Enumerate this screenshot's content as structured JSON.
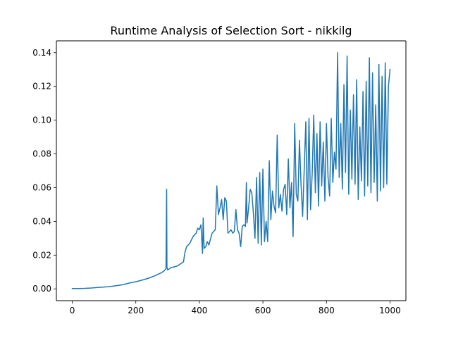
{
  "chart_data": {
    "type": "line",
    "title": "Runtime Analysis of Selection Sort - nikkilg",
    "xlabel": "",
    "ylabel": "",
    "xlim": [
      -50,
      1050
    ],
    "ylim": [
      -0.007,
      0.147
    ],
    "xticks": [
      0,
      200,
      400,
      600,
      800,
      1000
    ],
    "xtick_labels": [
      "0",
      "200",
      "400",
      "600",
      "800",
      "1000"
    ],
    "yticks": [
      0.0,
      0.02,
      0.04,
      0.06,
      0.08,
      0.1,
      0.12,
      0.14
    ],
    "ytick_labels": [
      "0.00",
      "0.02",
      "0.04",
      "0.06",
      "0.08",
      "0.10",
      "0.12",
      "0.14"
    ],
    "grid": false,
    "legend": "none",
    "series": [
      {
        "color": "#1f77b4",
        "x": [
          0,
          20,
          40,
          60,
          80,
          100,
          120,
          140,
          160,
          180,
          200,
          220,
          240,
          260,
          280,
          290,
          295,
          297,
          298,
          300,
          310,
          330,
          350,
          355,
          360,
          370,
          380,
          390,
          395,
          400,
          405,
          410,
          412,
          415,
          420,
          425,
          430,
          440,
          450,
          455,
          460,
          465,
          470,
          475,
          480,
          485,
          490,
          500,
          505,
          510,
          515,
          520,
          525,
          530,
          535,
          540,
          545,
          548,
          550,
          555,
          560,
          565,
          570,
          575,
          580,
          585,
          590,
          595,
          600,
          605,
          610,
          615,
          620,
          625,
          630,
          635,
          640,
          645,
          650,
          655,
          660,
          665,
          670,
          675,
          680,
          685,
          690,
          695,
          700,
          705,
          710,
          715,
          720,
          725,
          730,
          735,
          740,
          745,
          750,
          755,
          760,
          765,
          770,
          775,
          780,
          785,
          790,
          795,
          800,
          805,
          810,
          815,
          820,
          825,
          830,
          835,
          840,
          845,
          850,
          855,
          860,
          865,
          870,
          875,
          880,
          885,
          890,
          895,
          900,
          905,
          910,
          915,
          920,
          925,
          930,
          935,
          940,
          945,
          950,
          955,
          960,
          965,
          970,
          975,
          980,
          985,
          990,
          995,
          1000
        ],
        "y": [
          0.0002,
          0.0002,
          0.0003,
          0.0005,
          0.0008,
          0.0011,
          0.0014,
          0.0019,
          0.0025,
          0.0035,
          0.0042,
          0.0052,
          0.0063,
          0.0078,
          0.0095,
          0.0108,
          0.012,
          0.059,
          0.013,
          0.0112,
          0.0125,
          0.0135,
          0.016,
          0.022,
          0.025,
          0.027,
          0.031,
          0.033,
          0.036,
          0.035,
          0.038,
          0.021,
          0.042,
          0.024,
          0.025,
          0.028,
          0.026,
          0.033,
          0.035,
          0.061,
          0.044,
          0.048,
          0.053,
          0.041,
          0.054,
          0.052,
          0.033,
          0.035,
          0.033,
          0.034,
          0.047,
          0.035,
          0.033,
          0.025,
          0.037,
          0.038,
          0.037,
          0.063,
          0.039,
          0.048,
          0.059,
          0.057,
          0.045,
          0.03,
          0.066,
          0.027,
          0.069,
          0.026,
          0.071,
          0.028,
          0.04,
          0.028,
          0.076,
          0.041,
          0.058,
          0.049,
          0.045,
          0.091,
          0.048,
          0.056,
          0.046,
          0.059,
          0.062,
          0.044,
          0.077,
          0.048,
          0.063,
          0.031,
          0.098,
          0.056,
          0.052,
          0.088,
          0.062,
          0.043,
          0.071,
          0.099,
          0.041,
          0.101,
          0.047,
          0.068,
          0.103,
          0.057,
          0.092,
          0.049,
          0.099,
          0.061,
          0.087,
          0.052,
          0.098,
          0.066,
          0.055,
          0.101,
          0.063,
          0.081,
          0.071,
          0.14,
          0.066,
          0.098,
          0.059,
          0.121,
          0.069,
          0.138,
          0.056,
          0.106,
          0.065,
          0.115,
          0.062,
          0.124,
          0.053,
          0.096,
          0.064,
          0.117,
          0.055,
          0.123,
          0.061,
          0.137,
          0.057,
          0.128,
          0.063,
          0.109,
          0.052,
          0.133,
          0.058,
          0.126,
          0.06,
          0.134,
          0.062,
          0.12,
          0.13
        ]
      }
    ]
  }
}
